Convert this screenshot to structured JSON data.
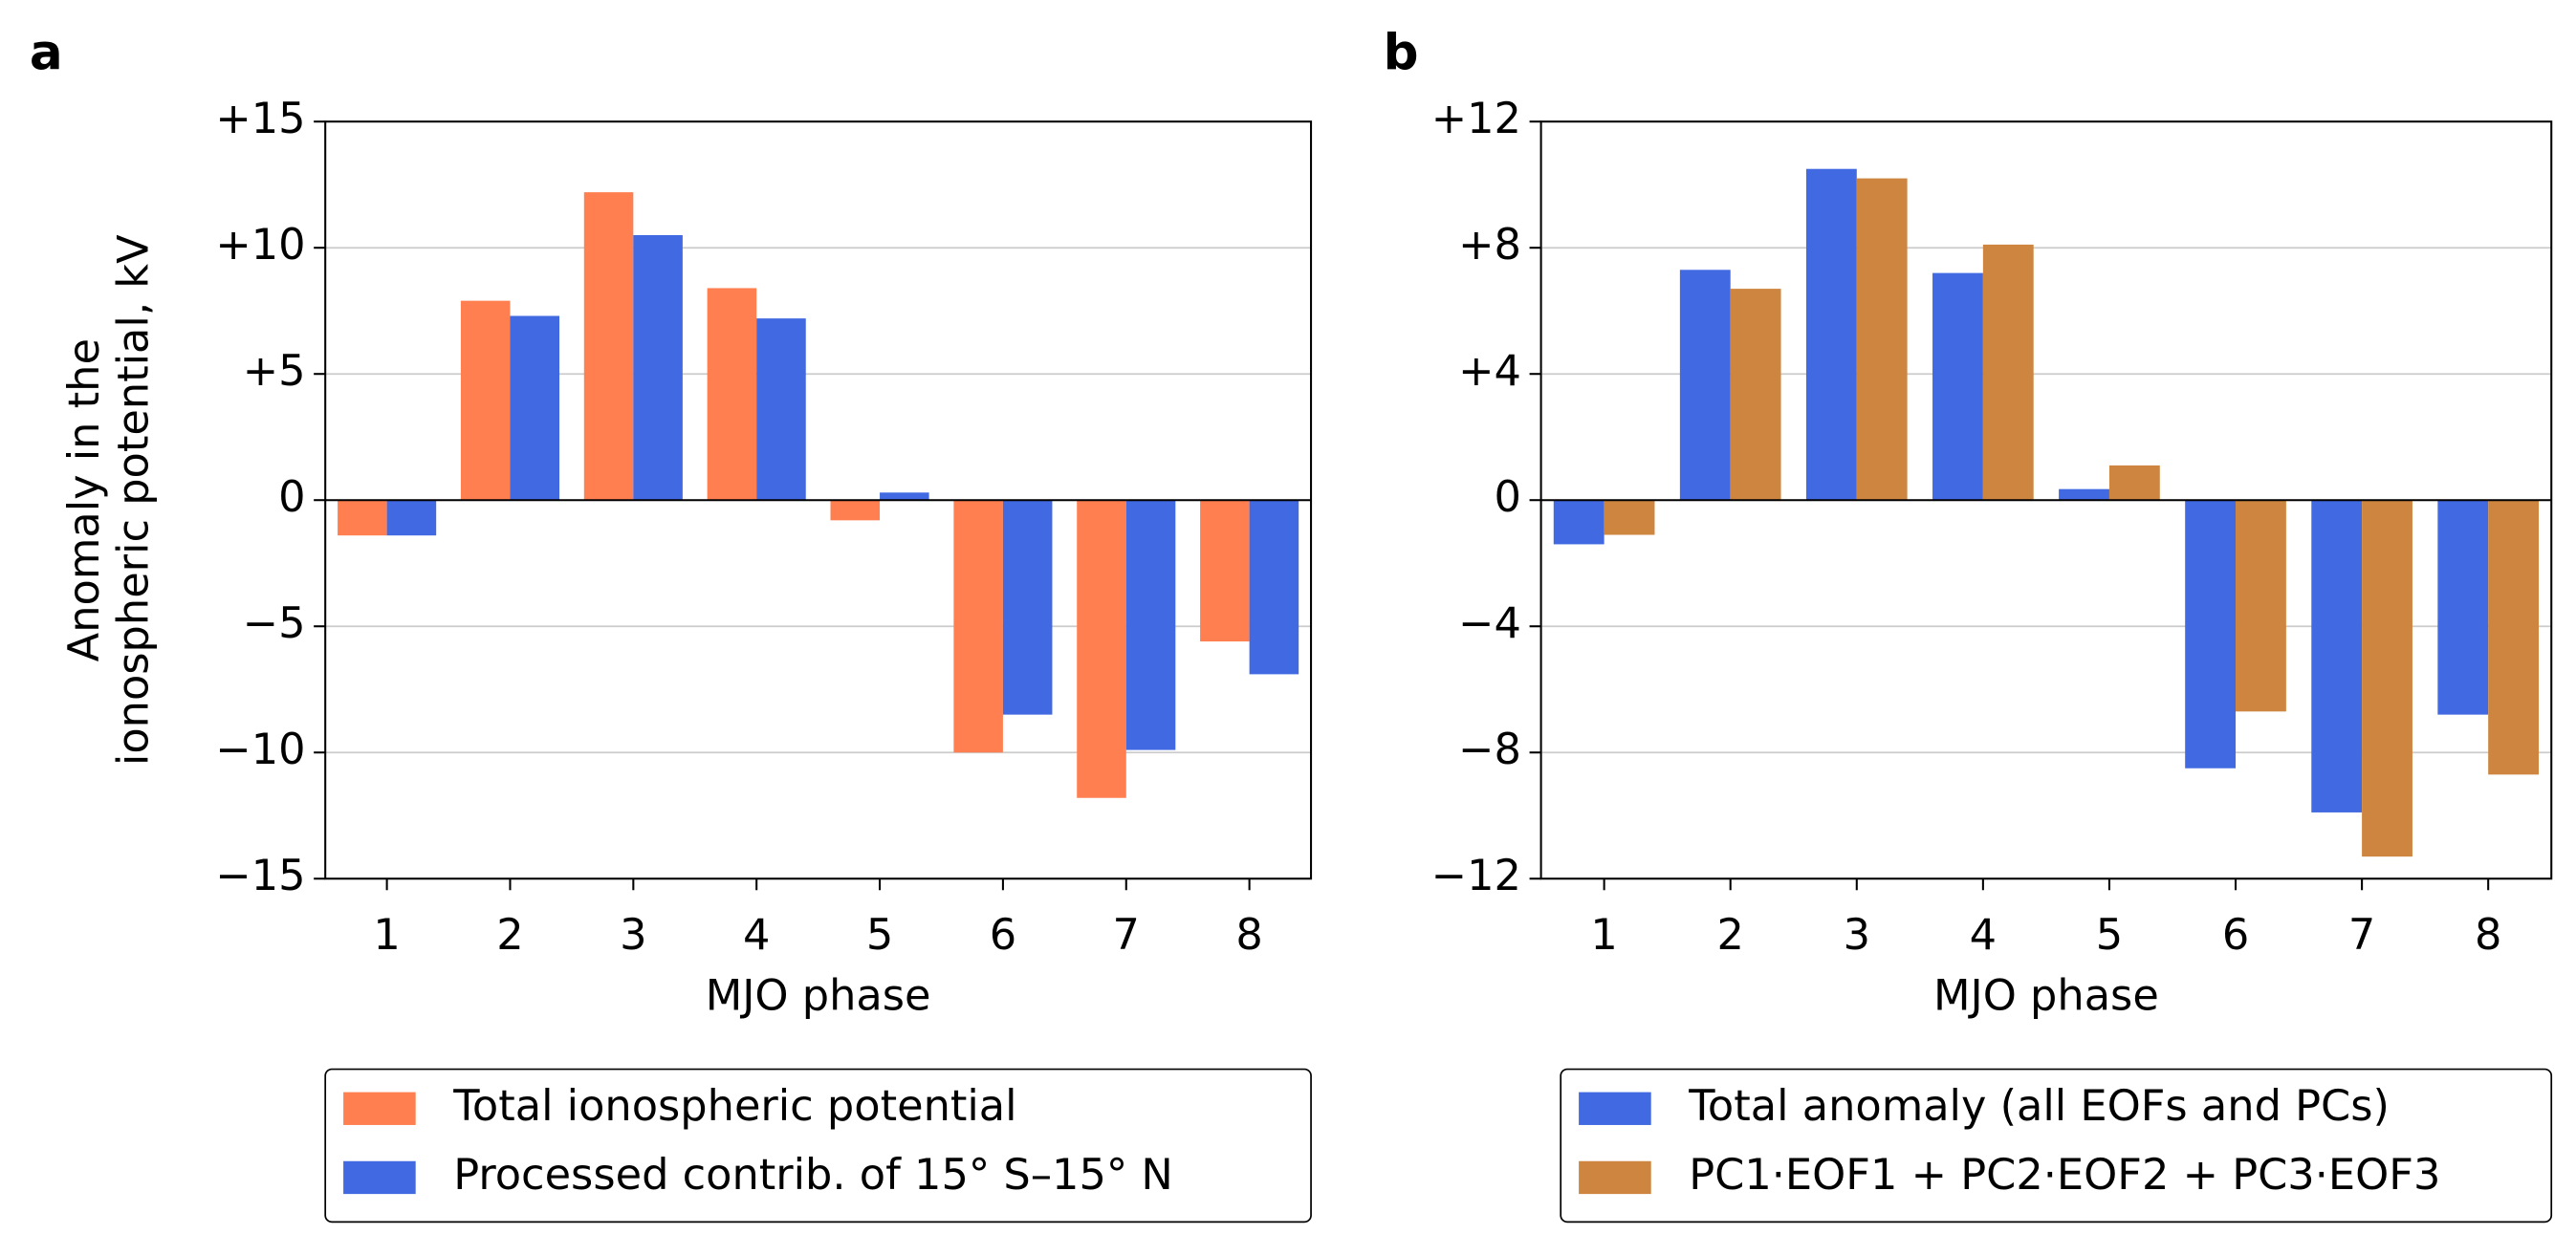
{
  "chart_data": [
    {
      "type": "bar",
      "panel_label": "a",
      "ylabel": [
        "Anomaly in the",
        "ionospheric potential, kV"
      ],
      "xlabel": "MJO phase",
      "categories": [
        "1",
        "2",
        "3",
        "4",
        "5",
        "6",
        "7",
        "8"
      ],
      "series": [
        {
          "name": "Total ionospheric potential",
          "color": "#ff7f50",
          "values": [
            -1.4,
            7.9,
            12.2,
            8.4,
            -0.8,
            -10.0,
            -11.8,
            -5.6
          ]
        },
        {
          "name": "Processed contrib. of 15° S–15° N",
          "color": "#4169e1",
          "values": [
            -1.4,
            7.3,
            10.5,
            7.2,
            0.3,
            -8.5,
            -9.9,
            -6.9
          ]
        }
      ],
      "ylim": [
        -15,
        15
      ],
      "yticks": [
        {
          "value": -15,
          "label": "−15"
        },
        {
          "value": -10,
          "label": "−10"
        },
        {
          "value": -5,
          "label": "−5"
        },
        0,
        {
          "value": 5,
          "label": "+5"
        },
        {
          "value": 10,
          "label": "+10"
        },
        {
          "value": 15,
          "label": "+15"
        }
      ],
      "grid": true,
      "legend": "below"
    },
    {
      "type": "bar",
      "panel_label": "b",
      "xlabel": "MJO phase",
      "categories": [
        "1",
        "2",
        "3",
        "4",
        "5",
        "6",
        "7",
        "8"
      ],
      "series": [
        {
          "name": "Total anomaly (all EOFs and PCs)",
          "color": "#4169e1",
          "values": [
            -1.4,
            7.3,
            10.5,
            7.2,
            0.35,
            -8.5,
            -9.9,
            -6.8
          ]
        },
        {
          "name": "PC1·EOF1 + PC2·EOF2 + PC3·EOF3",
          "color": "#cd853f",
          "values": [
            -1.1,
            6.7,
            10.2,
            8.1,
            1.1,
            -6.7,
            -11.3,
            -8.7
          ]
        }
      ],
      "ylim": [
        -12,
        12
      ],
      "yticks": [
        {
          "value": -12,
          "label": "−12"
        },
        {
          "value": -8,
          "label": "−8"
        },
        {
          "value": -4,
          "label": "−4"
        },
        0,
        {
          "value": 4,
          "label": "+4"
        },
        {
          "value": 8,
          "label": "+8"
        },
        {
          "value": 12,
          "label": "+12"
        }
      ],
      "grid": true,
      "legend": "below"
    }
  ]
}
